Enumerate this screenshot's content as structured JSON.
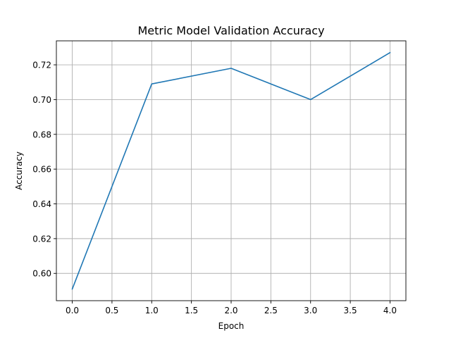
{
  "chart_data": {
    "type": "line",
    "title": "Metric Model Validation Accuracy",
    "xlabel": "Epoch",
    "ylabel": "Accuracy",
    "x": [
      0,
      1,
      2,
      3,
      4
    ],
    "series": [
      {
        "values": [
          0.591,
          0.709,
          0.718,
          0.7,
          0.727
        ],
        "color": "#1f77b4"
      }
    ],
    "xlim": [
      -0.2,
      4.2
    ],
    "ylim": [
      0.5843,
      0.7338
    ],
    "xticks": [
      0.0,
      0.5,
      1.0,
      1.5,
      2.0,
      2.5,
      3.0,
      3.5,
      4.0
    ],
    "xtick_labels": [
      "0.0",
      "0.5",
      "1.0",
      "1.5",
      "2.0",
      "2.5",
      "3.0",
      "3.5",
      "4.0"
    ],
    "yticks": [
      0.6,
      0.62,
      0.64,
      0.66,
      0.68,
      0.7,
      0.72
    ],
    "ytick_labels": [
      "0.60",
      "0.62",
      "0.64",
      "0.66",
      "0.68",
      "0.70",
      "0.72"
    ],
    "grid": true,
    "legend": "none"
  }
}
